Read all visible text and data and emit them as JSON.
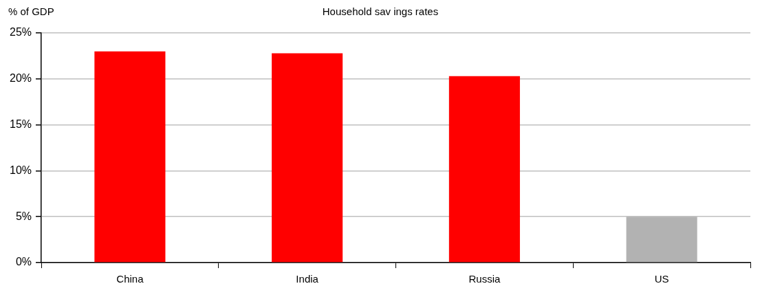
{
  "chart_data": {
    "type": "bar",
    "title": "Household sav ings rates",
    "ylabel": "% of GDP",
    "categories": [
      "China",
      "India",
      "Russia",
      "US"
    ],
    "values": [
      23.0,
      22.8,
      20.3,
      5.0
    ],
    "colors": [
      "#ff0000",
      "#ff0000",
      "#ff0000",
      "#b2b2b2"
    ],
    "ylim": [
      0,
      25
    ],
    "yticks": [
      {
        "value": 0,
        "label": "0%"
      },
      {
        "value": 5,
        "label": "5%"
      },
      {
        "value": 10,
        "label": "10%"
      },
      {
        "value": 15,
        "label": "15%"
      },
      {
        "value": 20,
        "label": "20%"
      },
      {
        "value": 25,
        "label": "25%"
      }
    ],
    "grid": "y",
    "legend": false
  }
}
